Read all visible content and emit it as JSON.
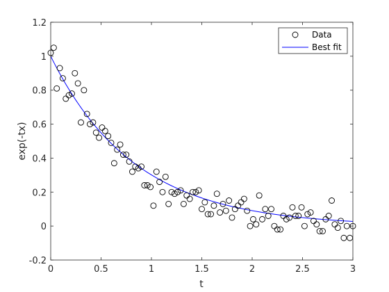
{
  "chart_data": {
    "type": "scatter",
    "xlabel": "t",
    "ylabel": "exp(-tx)",
    "xlim": [
      0,
      3
    ],
    "ylim": [
      -0.2,
      1.2
    ],
    "x_ticks": [
      "0",
      "0.5",
      "1",
      "1.5",
      "2",
      "2.5",
      "3"
    ],
    "y_ticks": [
      "-0.2",
      "0",
      "0.2",
      "0.4",
      "0.6",
      "0.8",
      "1",
      "1.2"
    ],
    "grid": false,
    "legend": {
      "position": "top-right",
      "entries": [
        "Data",
        "Best fit"
      ]
    },
    "series": [
      {
        "name": "Data",
        "type": "scatter",
        "marker": "circle-open",
        "color": "#000000",
        "x": [
          0,
          0.03,
          0.06,
          0.09,
          0.12,
          0.15,
          0.18,
          0.21,
          0.24,
          0.27,
          0.3,
          0.33,
          0.36,
          0.39,
          0.42,
          0.45,
          0.48,
          0.51,
          0.54,
          0.57,
          0.6,
          0.63,
          0.66,
          0.69,
          0.72,
          0.75,
          0.78,
          0.81,
          0.84,
          0.87,
          0.9,
          0.93,
          0.96,
          0.99,
          1.02,
          1.05,
          1.08,
          1.11,
          1.14,
          1.17,
          1.2,
          1.23,
          1.26,
          1.29,
          1.32,
          1.35,
          1.38,
          1.41,
          1.44,
          1.47,
          1.5,
          1.53,
          1.56,
          1.59,
          1.62,
          1.65,
          1.68,
          1.71,
          1.74,
          1.77,
          1.8,
          1.83,
          1.86,
          1.89,
          1.92,
          1.95,
          1.98,
          2.01,
          2.04,
          2.07,
          2.1,
          2.13,
          2.16,
          2.19,
          2.22,
          2.25,
          2.28,
          2.31,
          2.34,
          2.37,
          2.4,
          2.43,
          2.46,
          2.49,
          2.52,
          2.55,
          2.58,
          2.61,
          2.64,
          2.67,
          2.7,
          2.73,
          2.76,
          2.79,
          2.82,
          2.85,
          2.88,
          2.91,
          2.94,
          2.97,
          3.0
        ],
        "y": [
          1.02,
          1.05,
          0.81,
          0.93,
          0.87,
          0.75,
          0.77,
          0.78,
          0.9,
          0.84,
          0.61,
          0.8,
          0.66,
          0.6,
          0.61,
          0.55,
          0.52,
          0.58,
          0.56,
          0.53,
          0.49,
          0.37,
          0.45,
          0.48,
          0.42,
          0.42,
          0.38,
          0.32,
          0.35,
          0.34,
          0.35,
          0.24,
          0.24,
          0.23,
          0.12,
          0.32,
          0.26,
          0.2,
          0.29,
          0.13,
          0.2,
          0.19,
          0.2,
          0.21,
          0.13,
          0.18,
          0.16,
          0.2,
          0.2,
          0.21,
          0.1,
          0.14,
          0.07,
          0.07,
          0.12,
          0.19,
          0.08,
          0.13,
          0.09,
          0.15,
          0.05,
          0.1,
          0.12,
          0.14,
          0.16,
          0.09,
          0.0,
          0.04,
          0.01,
          0.18,
          0.04,
          0.1,
          0.06,
          0.1,
          0.0,
          -0.02,
          -0.02,
          0.06,
          0.04,
          0.05,
          0.11,
          0.06,
          0.06,
          0.11,
          0.0,
          0.07,
          0.08,
          0.03,
          0.01,
          -0.03,
          -0.03,
          0.04,
          0.06,
          0.15,
          0.01,
          -0.01,
          0.03,
          -0.07,
          0.0,
          -0.07,
          0.0
        ]
      },
      {
        "name": "Best fit",
        "type": "line",
        "color": "#0000ff",
        "function": "exp(-1.2 t)",
        "x": [
          0,
          0.25,
          0.5,
          0.75,
          1.0,
          1.25,
          1.5,
          1.75,
          2.0,
          2.25,
          2.5,
          2.75,
          3.0
        ],
        "y": [
          1.0,
          0.74,
          0.549,
          0.407,
          0.301,
          0.223,
          0.165,
          0.122,
          0.091,
          0.067,
          0.05,
          0.037,
          0.027
        ]
      }
    ]
  }
}
